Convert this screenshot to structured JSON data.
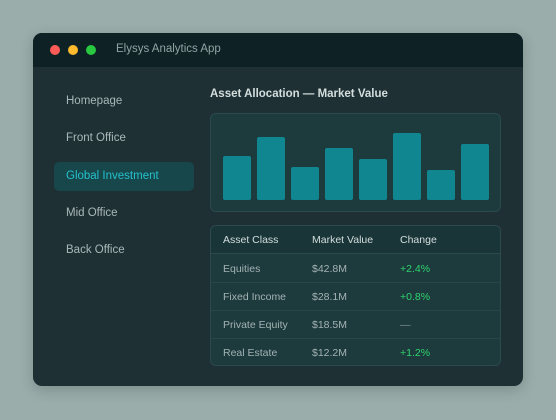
{
  "window": {
    "title": "Elysys Analytics App"
  },
  "sidebar": {
    "items": [
      {
        "label": "Homepage"
      },
      {
        "label": "Front Office"
      },
      {
        "label": "Global Investment"
      },
      {
        "label": "Mid Office"
      },
      {
        "label": "Back Office"
      }
    ],
    "active_index": 2
  },
  "main": {
    "section_title": "Asset Allocation — Market Value",
    "table": {
      "headers": [
        "Asset Class",
        "Market Value",
        "Change"
      ],
      "rows": [
        {
          "asset_class": "Equities",
          "market_value": "$42.8M",
          "change": "+2.4%"
        },
        {
          "asset_class": "Fixed Income",
          "market_value": "$28.1M",
          "change": "+0.8%"
        },
        {
          "asset_class": "Private Equity",
          "market_value": "$18.5M",
          "change": "—"
        },
        {
          "asset_class": "Real Estate",
          "market_value": "$12.2M",
          "change": "+1.2%"
        }
      ]
    }
  },
  "chart_data": {
    "type": "bar",
    "values": [
      44,
      63,
      33,
      52,
      41,
      67,
      30,
      56
    ],
    "ylim": [
      0,
      70
    ],
    "grid": false,
    "bar_color": "#0f8690"
  },
  "colors": {
    "accent": "#25c1cc",
    "positive": "#2fd46e",
    "window_bg": "#1f3035",
    "titlebar_bg": "#0e2124"
  }
}
